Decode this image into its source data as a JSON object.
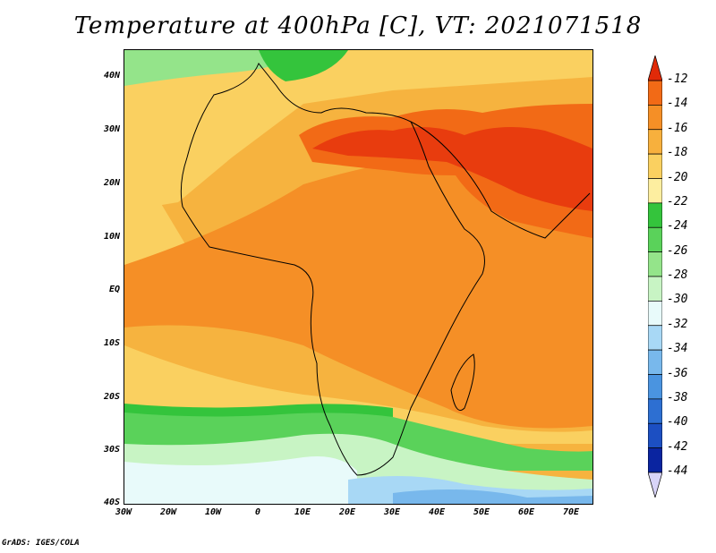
{
  "title": "Temperature at 400hPa [C], VT: 2021071518",
  "credit": "GrADS: IGES/COLA",
  "map": {
    "lon_range": [
      -30,
      75
    ],
    "lat_range": [
      -40,
      45
    ],
    "lat_labels": [
      "40N",
      "30N",
      "20N",
      "10N",
      "EQ",
      "10S",
      "20S",
      "30S",
      "40S"
    ],
    "lon_labels": [
      "30W",
      "20W",
      "10W",
      "0",
      "10E",
      "20E",
      "30E",
      "40E",
      "50E",
      "60E",
      "70E"
    ],
    "background_color": "#f6b33f"
  },
  "colorbar": {
    "labels": [
      "-12",
      "-14",
      "-16",
      "-18",
      "-20",
      "-22",
      "-24",
      "-26",
      "-28",
      "-30",
      "-32",
      "-34",
      "-36",
      "-38",
      "-40",
      "-42",
      "-44"
    ],
    "colors": [
      "#e83c0e",
      "#f26a16",
      "#f58f26",
      "#f7b03d",
      "#fad060",
      "#fdeeA0",
      "#34c43c",
      "#5ad25a",
      "#94e48a",
      "#c8f4c4",
      "#e8fafa",
      "#a8d8f5",
      "#78b8ec",
      "#4a94e0",
      "#2d6fd2",
      "#1c4fc2",
      "#0a24a0"
    ],
    "top_color": "#e02a08",
    "bottom_color": "#d8d4f8"
  }
}
